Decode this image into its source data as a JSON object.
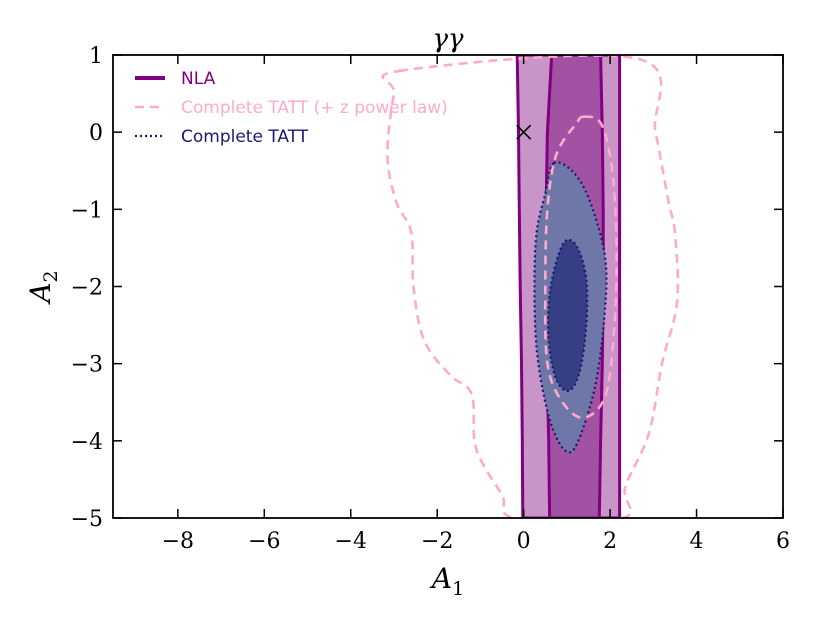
{
  "chart_data": {
    "type": "contour",
    "title": "γγ",
    "xlabel": "A",
    "xlabel_sub": "1",
    "ylabel": "A",
    "ylabel_sub": "2",
    "xlim": [
      -9.5,
      6
    ],
    "ylim": [
      -5,
      1
    ],
    "xticks": [
      -8,
      -6,
      -4,
      -2,
      0,
      2,
      4,
      6
    ],
    "xtick_labels": [
      "−8",
      "−6",
      "−4",
      "−2",
      "0",
      "2",
      "4",
      "6"
    ],
    "yticks": [
      1,
      0,
      -1,
      -2,
      -3,
      -4,
      -5
    ],
    "ytick_labels": [
      "1",
      "0",
      "−1",
      "−2",
      "−3",
      "−4",
      "−5"
    ],
    "grid": false,
    "legend_position": "top-left",
    "marker": {
      "name": "reference point",
      "x": 0,
      "y": 0,
      "symbol": "×"
    },
    "series": [
      {
        "name": "NLA",
        "line_style": "solid",
        "color": "#800080",
        "contour_68": [
          [
            0.65,
            1.0
          ],
          [
            0.55,
            0.0
          ],
          [
            0.52,
            -1.0
          ],
          [
            0.52,
            -2.0
          ],
          [
            0.54,
            -3.0
          ],
          [
            0.58,
            -4.0
          ],
          [
            0.6,
            -5.0
          ],
          [
            1.75,
            -5.0
          ],
          [
            1.78,
            -4.0
          ],
          [
            1.82,
            -3.0
          ],
          [
            1.84,
            -2.0
          ],
          [
            1.84,
            -1.0
          ],
          [
            1.82,
            0.0
          ],
          [
            1.78,
            1.0
          ]
        ],
        "contour_95": [
          [
            -0.15,
            1.0
          ],
          [
            -0.12,
            0.0
          ],
          [
            -0.1,
            -1.0
          ],
          [
            -0.08,
            -2.0
          ],
          [
            -0.05,
            -3.0
          ],
          [
            -0.03,
            -4.0
          ],
          [
            -0.02,
            -5.0
          ],
          [
            2.22,
            -5.0
          ],
          [
            2.22,
            -4.0
          ],
          [
            2.22,
            -3.0
          ],
          [
            2.22,
            -2.0
          ],
          [
            2.22,
            -1.0
          ],
          [
            2.22,
            0.0
          ],
          [
            2.22,
            1.0
          ]
        ]
      },
      {
        "name": "Complete TATT (+ z power law)",
        "line_style": "dashed",
        "color": "#ffaacc",
        "contour_68": [
          [
            1.4,
            0.2
          ],
          [
            1.2,
            0.1
          ],
          [
            0.75,
            -0.3
          ],
          [
            0.55,
            -1.0
          ],
          [
            0.5,
            -2.0
          ],
          [
            0.55,
            -3.0
          ],
          [
            0.9,
            -3.5
          ],
          [
            1.4,
            -3.7
          ],
          [
            1.9,
            -3.4
          ],
          [
            2.1,
            -2.5
          ],
          [
            2.15,
            -1.5
          ],
          [
            2.05,
            -0.5
          ],
          [
            1.8,
            0.1
          ]
        ],
        "contour_95": [
          [
            -2.8,
            0.8
          ],
          [
            -3.0,
            0.5
          ],
          [
            -3.15,
            -0.3
          ],
          [
            -2.95,
            -0.9
          ],
          [
            -2.6,
            -1.3
          ],
          [
            -2.55,
            -2.0
          ],
          [
            -2.3,
            -2.7
          ],
          [
            -1.7,
            -3.15
          ],
          [
            -1.2,
            -3.4
          ],
          [
            -1.1,
            -4.1
          ],
          [
            -0.5,
            -4.7
          ],
          [
            -0.2,
            -5.0
          ],
          [
            2.3,
            -5.0
          ],
          [
            2.35,
            -4.6
          ],
          [
            2.9,
            -3.9
          ],
          [
            3.2,
            -3.0
          ],
          [
            3.55,
            -2.2
          ],
          [
            3.5,
            -1.3
          ],
          [
            3.35,
            -0.9
          ],
          [
            3.05,
            0.0
          ],
          [
            2.65,
            0.95
          ]
        ]
      },
      {
        "name": "Complete TATT",
        "line_style": "dotted",
        "color": "#191970",
        "contour_68": [
          [
            1.0,
            -1.4
          ],
          [
            0.8,
            -1.6
          ],
          [
            0.6,
            -2.1
          ],
          [
            0.58,
            -2.7
          ],
          [
            0.75,
            -3.2
          ],
          [
            1.05,
            -3.35
          ],
          [
            1.3,
            -3.1
          ],
          [
            1.45,
            -2.5
          ],
          [
            1.45,
            -1.9
          ],
          [
            1.25,
            -1.5
          ]
        ],
        "contour_95": [
          [
            0.7,
            -0.4
          ],
          [
            0.5,
            -0.8
          ],
          [
            0.3,
            -1.3
          ],
          [
            0.25,
            -2.0
          ],
          [
            0.3,
            -2.8
          ],
          [
            0.5,
            -3.5
          ],
          [
            0.75,
            -3.95
          ],
          [
            1.05,
            -4.15
          ],
          [
            1.3,
            -3.95
          ],
          [
            1.65,
            -3.3
          ],
          [
            1.85,
            -2.5
          ],
          [
            1.9,
            -1.7
          ],
          [
            1.6,
            -1.0
          ],
          [
            1.2,
            -0.55
          ]
        ]
      }
    ]
  }
}
